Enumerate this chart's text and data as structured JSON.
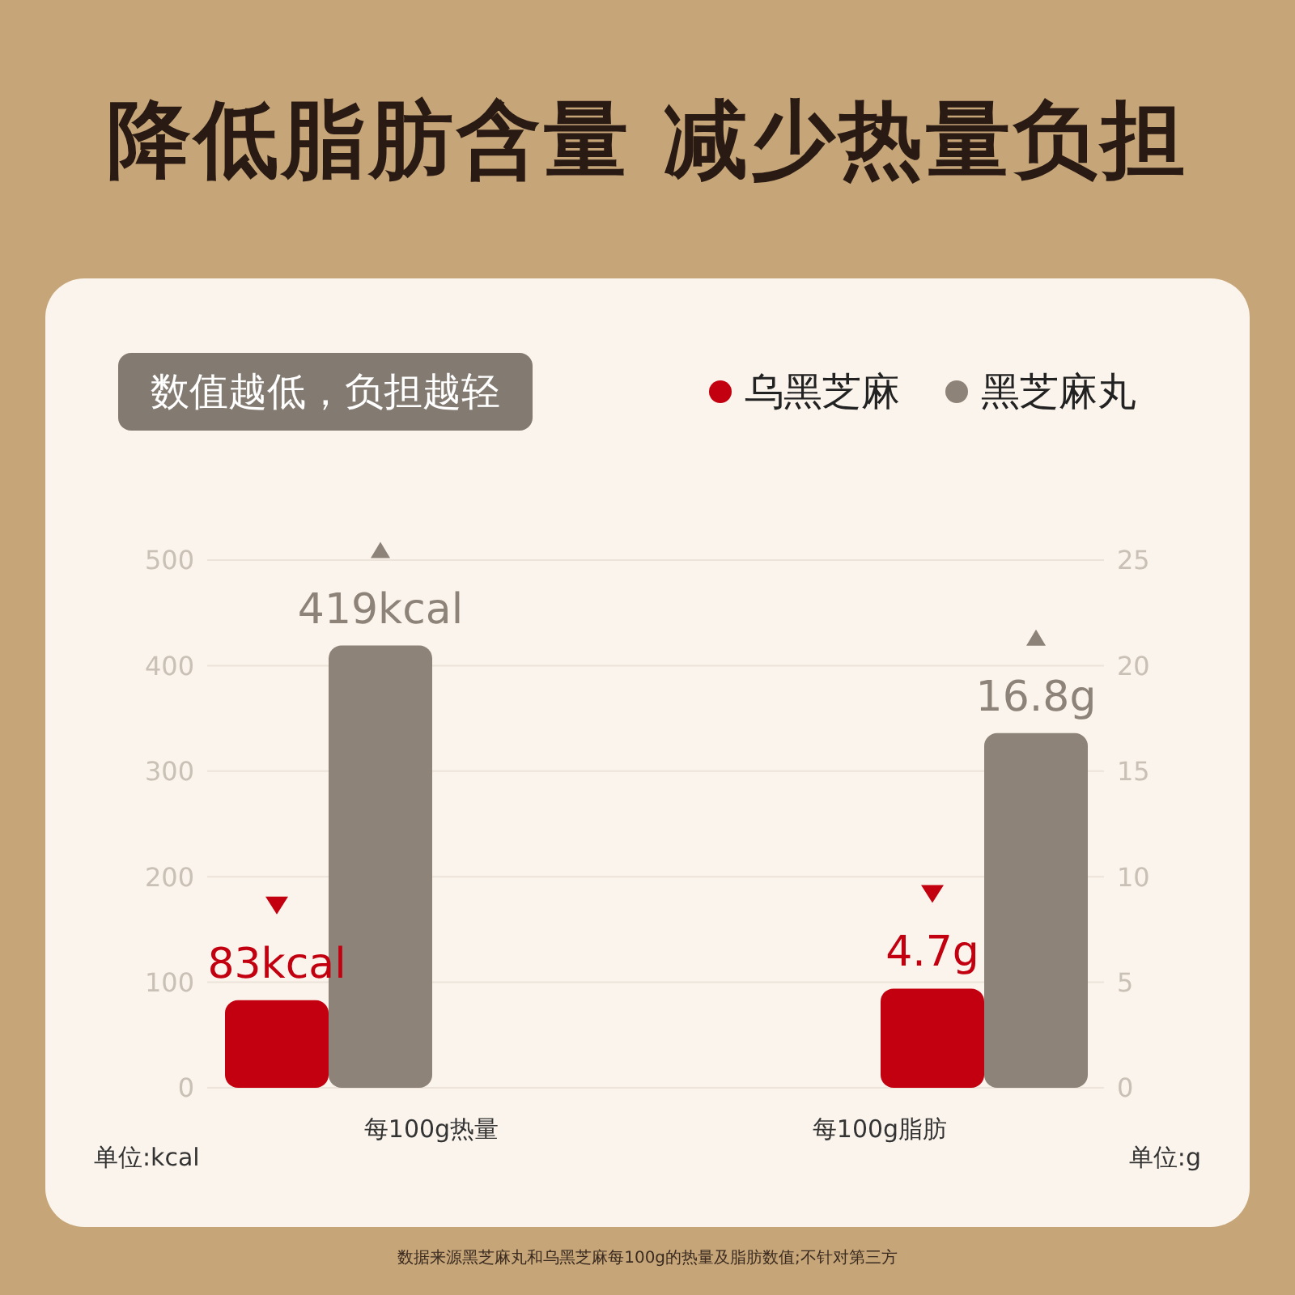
{
  "chart_data": {
    "type": "bar",
    "title": "降低脂肪含量 减少热量负担",
    "subtitle": "数值越低，负担越轻",
    "categories": [
      "每100g热量",
      "每100g脂肪"
    ],
    "series": [
      {
        "name": "乌黑芝麻",
        "color": "#c3000f",
        "values": [
          83,
          null
        ],
        "value_labels": [
          "83kcal",
          null
        ]
      },
      {
        "name": "黑芝麻丸",
        "color": "#8d8378",
        "values": [
          419,
          null
        ],
        "value_labels": [
          "419kcal",
          null
        ]
      },
      {
        "color": "#c3000f",
        "axis": "y2",
        "values": [
          null,
          4.7
        ],
        "value_labels": [
          null,
          "4.7g"
        ]
      },
      {
        "color": "#8d8378",
        "axis": "y2",
        "values": [
          null,
          16.8
        ],
        "value_labels": [
          null,
          "16.8g"
        ]
      }
    ],
    "ylim": [
      0,
      500
    ],
    "yticks": [
      0,
      100,
      200,
      300,
      400,
      500
    ],
    "y2lim": [
      0,
      25
    ],
    "y2ticks": [
      0,
      5,
      10,
      15,
      20,
      25
    ],
    "ylabel": "单位:kcal",
    "y2label": "单位:g",
    "grid": "y",
    "legend": "top right",
    "annotations": [
      "数据来源黑芝麻丸和乌黑芝麻每100g的热量及脂肪数值;不针对第三方"
    ]
  }
}
